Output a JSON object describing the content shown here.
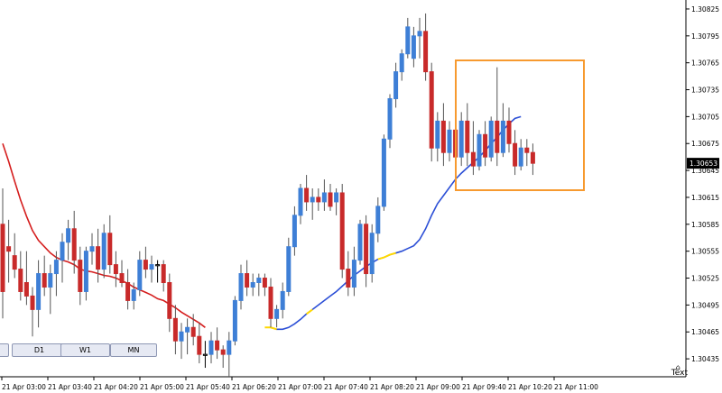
{
  "chart_data": {
    "type": "candlestick",
    "symbol_price_label": "1.30653",
    "y_axis": {
      "ylim": [
        1.30415,
        1.30835
      ],
      "ticks": [
        "1.30825",
        "1.30795",
        "1.30765",
        "1.30735",
        "1.30705",
        "1.30675",
        "1.30645",
        "1.30615",
        "1.30585",
        "1.30555",
        "1.30525",
        "1.30495",
        "1.30465",
        "1.30435"
      ]
    },
    "x_axis": {
      "ticks": [
        "21 Apr 03:00",
        "21 Apr 03:40",
        "21 Apr 04:20",
        "21 Apr 05:00",
        "21 Apr 05:40",
        "21 Apr 06:20",
        "21 Apr 07:00",
        "21 Apr 07:40",
        "21 Apr 08:20",
        "21 Apr 09:00",
        "21 Apr 09:40",
        "21 Apr 10:20",
        "21 Apr 11:00"
      ]
    },
    "colors": {
      "bull": "#3e7fd6",
      "bear": "#c82a2a",
      "doji": "#000000",
      "ma_red": "#d51e1e",
      "ma_blue": "#2c4fd6",
      "ma_yellow": "#ffd800",
      "box": "#f79a2f",
      "price_tag_bg": "#000000"
    },
    "candles": [
      {
        "o": 1.30585,
        "h": 1.30625,
        "l": 1.3048,
        "c": 1.3051
      },
      {
        "o": 1.3056,
        "h": 1.3059,
        "l": 1.3052,
        "c": 1.30555
      },
      {
        "o": 1.3055,
        "h": 1.30575,
        "l": 1.30525,
        "c": 1.30535
      },
      {
        "o": 1.30535,
        "h": 1.30555,
        "l": 1.305,
        "c": 1.3051
      },
      {
        "o": 1.3052,
        "h": 1.30555,
        "l": 1.30495,
        "c": 1.30505
      },
      {
        "o": 1.30505,
        "h": 1.30515,
        "l": 1.3046,
        "c": 1.3049
      },
      {
        "o": 1.3049,
        "h": 1.30545,
        "l": 1.3047,
        "c": 1.3053
      },
      {
        "o": 1.3053,
        "h": 1.3055,
        "l": 1.30505,
        "c": 1.30515
      },
      {
        "o": 1.30515,
        "h": 1.3054,
        "l": 1.30485,
        "c": 1.3053
      },
      {
        "o": 1.3053,
        "h": 1.30555,
        "l": 1.30505,
        "c": 1.30545
      },
      {
        "o": 1.30545,
        "h": 1.30575,
        "l": 1.3052,
        "c": 1.30565
      },
      {
        "o": 1.30565,
        "h": 1.3059,
        "l": 1.30545,
        "c": 1.3058
      },
      {
        "o": 1.3058,
        "h": 1.306,
        "l": 1.3053,
        "c": 1.30545
      },
      {
        "o": 1.30545,
        "h": 1.3056,
        "l": 1.30495,
        "c": 1.3051
      },
      {
        "o": 1.3051,
        "h": 1.3056,
        "l": 1.305,
        "c": 1.30555
      },
      {
        "o": 1.30555,
        "h": 1.30575,
        "l": 1.3054,
        "c": 1.3056
      },
      {
        "o": 1.3056,
        "h": 1.3058,
        "l": 1.3052,
        "c": 1.30535
      },
      {
        "o": 1.30535,
        "h": 1.30585,
        "l": 1.30525,
        "c": 1.30575
      },
      {
        "o": 1.30575,
        "h": 1.30595,
        "l": 1.3053,
        "c": 1.3054
      },
      {
        "o": 1.3054,
        "h": 1.30555,
        "l": 1.30515,
        "c": 1.3053
      },
      {
        "o": 1.3053,
        "h": 1.30545,
        "l": 1.30515,
        "c": 1.3052
      },
      {
        "o": 1.3052,
        "h": 1.30535,
        "l": 1.3049,
        "c": 1.305
      },
      {
        "o": 1.305,
        "h": 1.3052,
        "l": 1.3049,
        "c": 1.30512
      },
      {
        "o": 1.30512,
        "h": 1.30555,
        "l": 1.30505,
        "c": 1.30545
      },
      {
        "o": 1.30545,
        "h": 1.3056,
        "l": 1.30525,
        "c": 1.30535
      },
      {
        "o": 1.30535,
        "h": 1.3055,
        "l": 1.3052,
        "c": 1.3054
      },
      {
        "o": 1.3054,
        "h": 1.30545,
        "l": 1.3052,
        "c": 1.3054
      },
      {
        "o": 1.3054,
        "h": 1.30545,
        "l": 1.3051,
        "c": 1.3052
      },
      {
        "o": 1.3052,
        "h": 1.3053,
        "l": 1.30465,
        "c": 1.3048
      },
      {
        "o": 1.3048,
        "h": 1.30495,
        "l": 1.3044,
        "c": 1.30455
      },
      {
        "o": 1.30455,
        "h": 1.30475,
        "l": 1.30435,
        "c": 1.30465
      },
      {
        "o": 1.30465,
        "h": 1.3048,
        "l": 1.3044,
        "c": 1.3047
      },
      {
        "o": 1.3047,
        "h": 1.30485,
        "l": 1.3045,
        "c": 1.3046
      },
      {
        "o": 1.3046,
        "h": 1.30475,
        "l": 1.3043,
        "c": 1.3044
      },
      {
        "o": 1.3044,
        "h": 1.30455,
        "l": 1.30425,
        "c": 1.3044
      },
      {
        "o": 1.3044,
        "h": 1.30465,
        "l": 1.3043,
        "c": 1.30455
      },
      {
        "o": 1.30455,
        "h": 1.3047,
        "l": 1.30435,
        "c": 1.30445
      },
      {
        "o": 1.30445,
        "h": 1.3045,
        "l": 1.30425,
        "c": 1.3044
      },
      {
        "o": 1.3044,
        "h": 1.30465,
        "l": 1.30415,
        "c": 1.30455
      },
      {
        "o": 1.30455,
        "h": 1.30505,
        "l": 1.3045,
        "c": 1.305
      },
      {
        "o": 1.305,
        "h": 1.3054,
        "l": 1.3049,
        "c": 1.3053
      },
      {
        "o": 1.3053,
        "h": 1.30545,
        "l": 1.30505,
        "c": 1.30515
      },
      {
        "o": 1.30515,
        "h": 1.3053,
        "l": 1.30505,
        "c": 1.3052
      },
      {
        "o": 1.3052,
        "h": 1.3053,
        "l": 1.30505,
        "c": 1.30525
      },
      {
        "o": 1.30525,
        "h": 1.3053,
        "l": 1.30505,
        "c": 1.30515
      },
      {
        "o": 1.30515,
        "h": 1.30525,
        "l": 1.3047,
        "c": 1.3048
      },
      {
        "o": 1.3048,
        "h": 1.30495,
        "l": 1.3047,
        "c": 1.3049
      },
      {
        "o": 1.3049,
        "h": 1.3052,
        "l": 1.3048,
        "c": 1.3051
      },
      {
        "o": 1.3051,
        "h": 1.3057,
        "l": 1.30505,
        "c": 1.3056
      },
      {
        "o": 1.3056,
        "h": 1.30605,
        "l": 1.3055,
        "c": 1.30595
      },
      {
        "o": 1.30595,
        "h": 1.3063,
        "l": 1.30585,
        "c": 1.30625
      },
      {
        "o": 1.30625,
        "h": 1.3064,
        "l": 1.306,
        "c": 1.3061
      },
      {
        "o": 1.3061,
        "h": 1.30625,
        "l": 1.3059,
        "c": 1.30615
      },
      {
        "o": 1.30615,
        "h": 1.30625,
        "l": 1.306,
        "c": 1.3061
      },
      {
        "o": 1.3061,
        "h": 1.30635,
        "l": 1.306,
        "c": 1.3062
      },
      {
        "o": 1.3062,
        "h": 1.3063,
        "l": 1.306,
        "c": 1.30605
      },
      {
        "o": 1.3061,
        "h": 1.30625,
        "l": 1.30595,
        "c": 1.3062
      },
      {
        "o": 1.3062,
        "h": 1.3063,
        "l": 1.30525,
        "c": 1.30535
      },
      {
        "o": 1.30535,
        "h": 1.30555,
        "l": 1.30505,
        "c": 1.30515
      },
      {
        "o": 1.30515,
        "h": 1.3056,
        "l": 1.30505,
        "c": 1.30545
      },
      {
        "o": 1.30545,
        "h": 1.3059,
        "l": 1.3054,
        "c": 1.30585
      },
      {
        "o": 1.30585,
        "h": 1.30595,
        "l": 1.30515,
        "c": 1.3053
      },
      {
        "o": 1.3053,
        "h": 1.30585,
        "l": 1.3052,
        "c": 1.30575
      },
      {
        "o": 1.30575,
        "h": 1.30615,
        "l": 1.30565,
        "c": 1.30605
      },
      {
        "o": 1.30605,
        "h": 1.30685,
        "l": 1.306,
        "c": 1.3068
      },
      {
        "o": 1.3068,
        "h": 1.3073,
        "l": 1.3067,
        "c": 1.30725
      },
      {
        "o": 1.30725,
        "h": 1.30765,
        "l": 1.30715,
        "c": 1.30755
      },
      {
        "o": 1.30755,
        "h": 1.3078,
        "l": 1.30745,
        "c": 1.30775
      },
      {
        "o": 1.30775,
        "h": 1.30815,
        "l": 1.3077,
        "c": 1.30805
      },
      {
        "o": 1.3077,
        "h": 1.30805,
        "l": 1.3076,
        "c": 1.30795
      },
      {
        "o": 1.30795,
        "h": 1.30815,
        "l": 1.3077,
        "c": 1.308
      },
      {
        "o": 1.308,
        "h": 1.3082,
        "l": 1.30745,
        "c": 1.30755
      },
      {
        "o": 1.30755,
        "h": 1.30765,
        "l": 1.30655,
        "c": 1.3067
      },
      {
        "o": 1.3067,
        "h": 1.3071,
        "l": 1.30655,
        "c": 1.307
      },
      {
        "o": 1.307,
        "h": 1.3072,
        "l": 1.3065,
        "c": 1.30665
      },
      {
        "o": 1.30665,
        "h": 1.307,
        "l": 1.30655,
        "c": 1.3069
      },
      {
        "o": 1.3069,
        "h": 1.30705,
        "l": 1.30645,
        "c": 1.3066
      },
      {
        "o": 1.3066,
        "h": 1.3071,
        "l": 1.3065,
        "c": 1.307
      },
      {
        "o": 1.307,
        "h": 1.3072,
        "l": 1.3065,
        "c": 1.30665
      },
      {
        "o": 1.30665,
        "h": 1.307,
        "l": 1.3064,
        "c": 1.3065
      },
      {
        "o": 1.3065,
        "h": 1.3069,
        "l": 1.30645,
        "c": 1.30685
      },
      {
        "o": 1.30685,
        "h": 1.307,
        "l": 1.3065,
        "c": 1.3066
      },
      {
        "o": 1.3066,
        "h": 1.30705,
        "l": 1.30655,
        "c": 1.307
      },
      {
        "o": 1.307,
        "h": 1.3076,
        "l": 1.3065,
        "c": 1.30665
      },
      {
        "o": 1.30665,
        "h": 1.3072,
        "l": 1.3066,
        "c": 1.307
      },
      {
        "o": 1.307,
        "h": 1.30715,
        "l": 1.30665,
        "c": 1.30675
      },
      {
        "o": 1.30675,
        "h": 1.3069,
        "l": 1.3064,
        "c": 1.3065
      },
      {
        "o": 1.3065,
        "h": 1.3068,
        "l": 1.30645,
        "c": 1.3067
      },
      {
        "o": 1.3067,
        "h": 1.3068,
        "l": 1.3065,
        "c": 1.30665
      },
      {
        "o": 1.30665,
        "h": 1.30675,
        "l": 1.3064,
        "c": 1.30653
      }
    ],
    "ma_red": [
      1.30675,
      1.30655,
      1.30633,
      1.30612,
      1.30594,
      1.30578,
      1.30567,
      1.3056,
      1.30553,
      1.30548,
      1.30545,
      1.30543,
      1.3054,
      1.30535,
      1.30533,
      1.30532,
      1.3053,
      1.30528,
      1.30527,
      1.30525,
      1.30522,
      1.30519,
      1.30515,
      1.30512,
      1.30509,
      1.30506,
      1.30502,
      1.305,
      1.30496,
      1.30492,
      1.30487,
      1.30483,
      1.30479,
      1.30475,
      1.3047
    ],
    "ma_blue": [
      1.3047,
      1.30468,
      1.30468,
      1.3047,
      1.30474,
      1.30479,
      1.30485,
      1.3049,
      1.30495,
      1.305,
      1.30505,
      1.3051,
      1.30516,
      1.30522,
      1.30528,
      1.30533,
      1.30538,
      1.30542,
      1.30546,
      1.30548,
      1.30551,
      1.30553,
      1.30555,
      1.30558,
      1.30561,
      1.30568,
      1.3058,
      1.30595,
      1.30608,
      1.30617,
      1.30626,
      1.30635,
      1.30642,
      1.30648,
      1.30654,
      1.3066,
      1.30667,
      1.30675,
      1.30682,
      1.3069,
      1.30697,
      1.30703,
      1.30705
    ]
  },
  "timeframes": {
    "partial": "",
    "d1": "D1",
    "w1": "W1",
    "mn": "MN"
  },
  "footer": {
    "text_tool": "Text"
  }
}
